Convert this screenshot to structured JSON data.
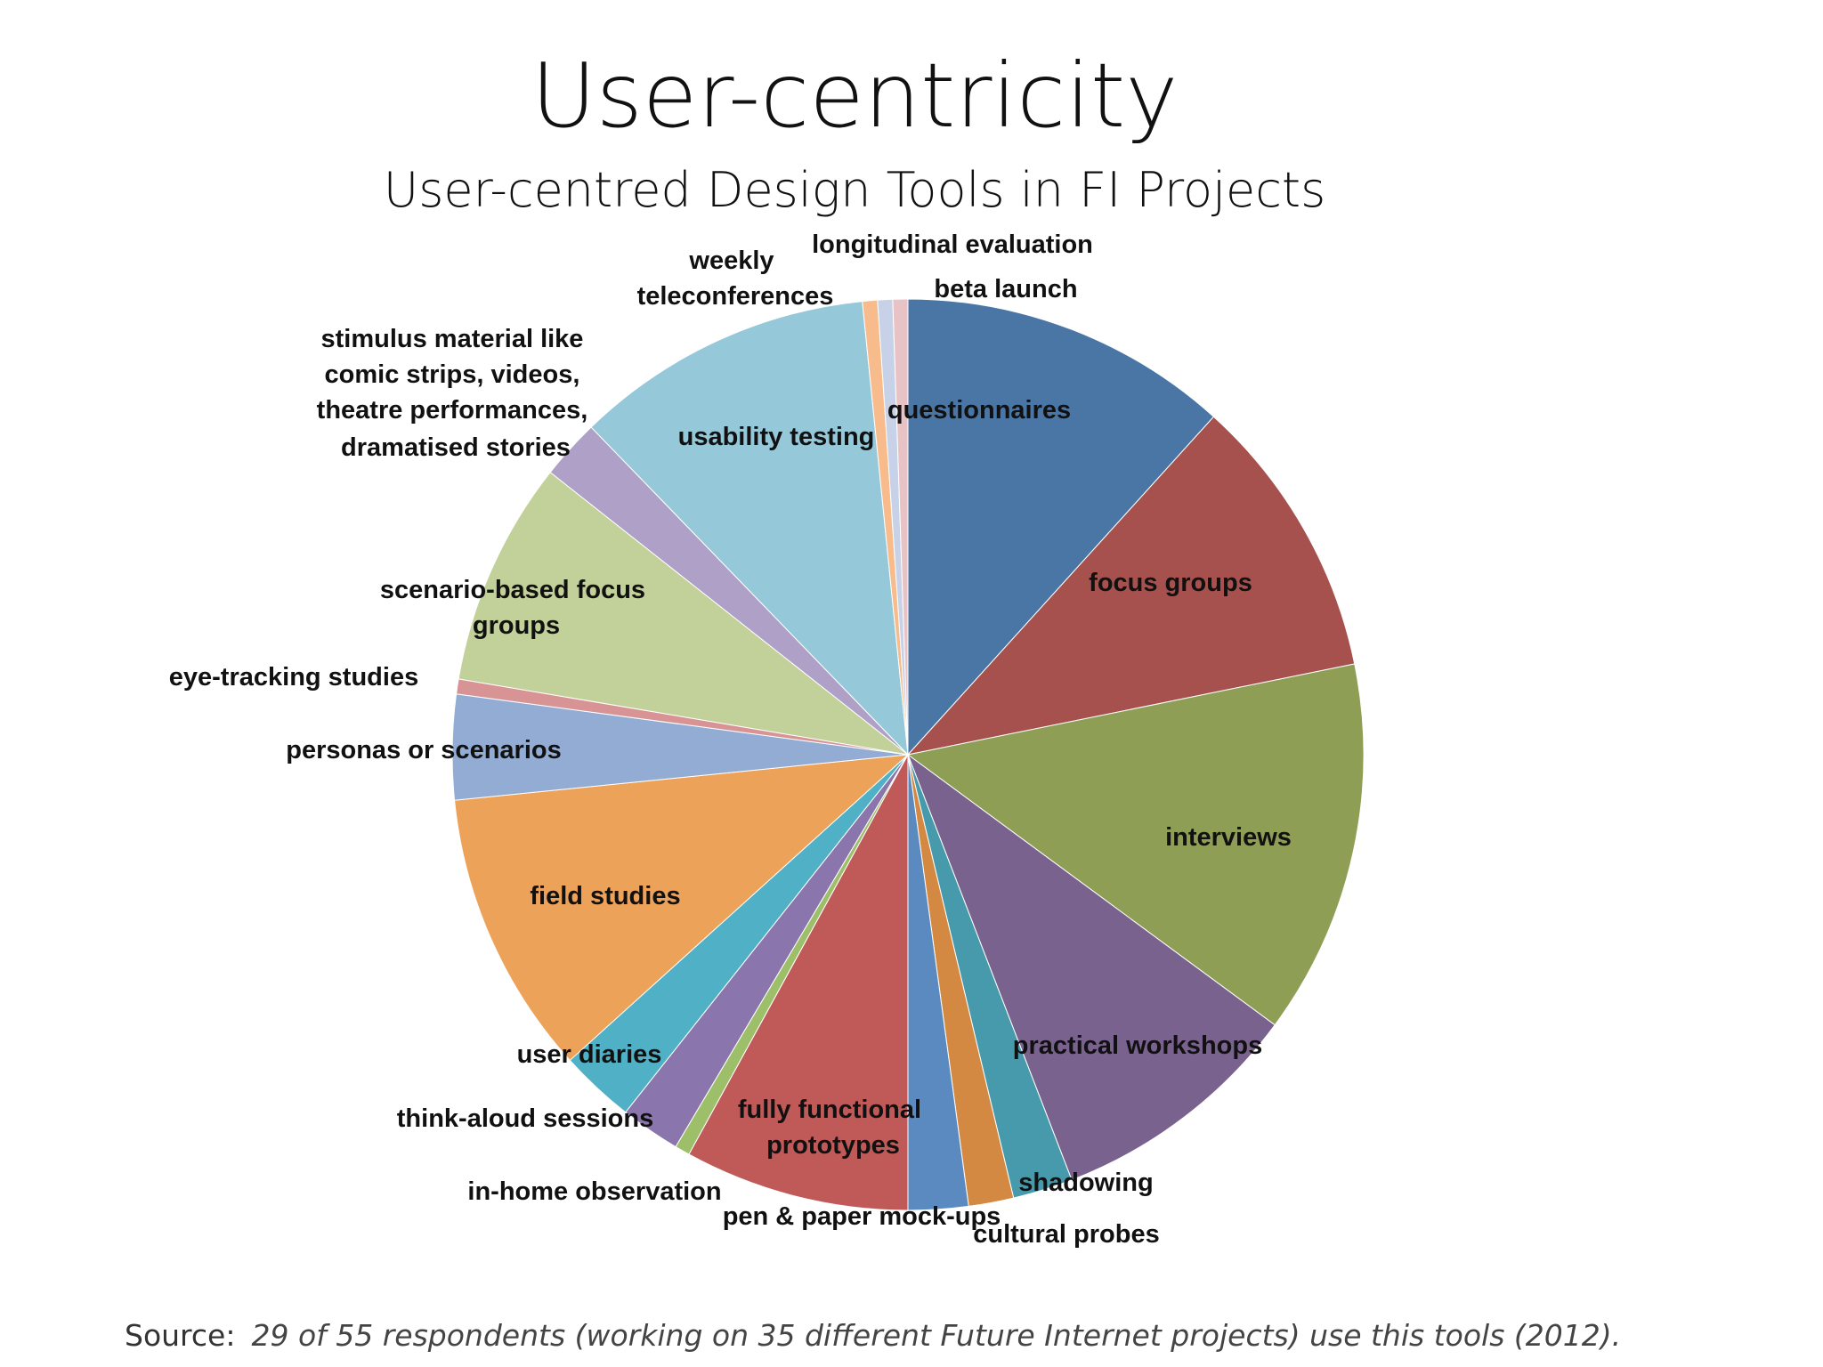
{
  "chart_data": {
    "type": "pie",
    "title": "User-centricity",
    "subtitle": "User-centred Design Tools in FI Projects",
    "start_angle_deg": 0,
    "direction": "clockwise",
    "slices": [
      {
        "label": "questionnaires",
        "value": 22,
        "color": "#4a76a6"
      },
      {
        "label": "focus groups",
        "value": 19,
        "color": "#a6514d"
      },
      {
        "label": "interviews",
        "value": 25,
        "color": "#8e9e55"
      },
      {
        "label": "practical workshops",
        "value": 17,
        "color": "#7a628f"
      },
      {
        "label": "shadowing",
        "value": 4,
        "color": "#479aab"
      },
      {
        "label": "cultural probes",
        "value": 3,
        "color": "#d48942"
      },
      {
        "label": "pen & paper mock-ups",
        "value": 4,
        "color": "#5b8ac1"
      },
      {
        "label": "fully functional prototypes",
        "value": 15,
        "color": "#c05a58"
      },
      {
        "label": "in-home observation",
        "value": 1,
        "color": "#9ebf6a"
      },
      {
        "label": "think-aloud sessions",
        "value": 4,
        "color": "#8a75ad"
      },
      {
        "label": "user diaries",
        "value": 5,
        "color": "#4fb0c6"
      },
      {
        "label": "field studies",
        "value": 19,
        "color": "#eda259"
      },
      {
        "label": "personas or scenarios",
        "value": 7,
        "color": "#92acd4"
      },
      {
        "label": "eye-tracking studies",
        "value": 1,
        "color": "#d89495"
      },
      {
        "label": "scenario-based focus groups",
        "value": 15,
        "color": "#c2d09a"
      },
      {
        "label": "stimulus material like comic strips, videos, theatre performances, dramatised stories",
        "value": 4,
        "color": "#aea0c7"
      },
      {
        "label": "usability testing",
        "value": 20,
        "color": "#95c8d9"
      },
      {
        "label": "weekly teleconferences",
        "value": 1,
        "color": "#f8bb8c"
      },
      {
        "label": "longitudinal evaluation",
        "value": 1,
        "color": "#c7d1e7"
      },
      {
        "label": "beta launch",
        "value": 1,
        "color": "#e7c3c5"
      }
    ]
  },
  "source": {
    "prefix": "Source:",
    "text": "29 of 55 respondents (working on 35 different Future Internet projects) use this tools (2012)."
  }
}
